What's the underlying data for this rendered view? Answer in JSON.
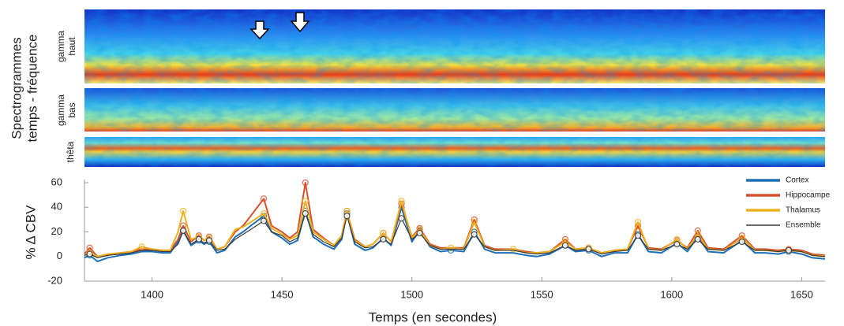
{
  "spectrogram": {
    "title_lines": [
      "Spectrogrammes",
      "temps - fréquence"
    ],
    "bands": [
      [
        "gamma",
        "haut"
      ],
      [
        "gamma",
        "bas"
      ],
      [
        "thêta"
      ]
    ]
  },
  "chart_data": {
    "type": "line",
    "ylabel": "% Δ CBV",
    "xlabel": "Temps (en secondes)",
    "x": [
      1374,
      1376,
      1379,
      1383,
      1388,
      1392,
      1396,
      1400,
      1404,
      1407,
      1410,
      1412,
      1415,
      1418,
      1420,
      1422,
      1425,
      1428,
      1432,
      1435,
      1438,
      1443,
      1446,
      1450,
      1453,
      1456,
      1459,
      1462,
      1466,
      1470,
      1473,
      1475,
      1478,
      1482,
      1485,
      1489,
      1492,
      1496,
      1500,
      1503,
      1507,
      1511,
      1515,
      1520,
      1524,
      1528,
      1532,
      1539,
      1544,
      1548,
      1553,
      1559,
      1563,
      1568,
      1573,
      1578,
      1583,
      1587,
      1591,
      1596,
      1602,
      1606,
      1610,
      1614,
      1620,
      1627,
      1632,
      1636,
      1641,
      1645,
      1650,
      1654,
      1659
    ],
    "series": [
      {
        "name": "Cortex",
        "color": "#1f6fb8",
        "values": [
          -1,
          1,
          -4,
          -1,
          1,
          2,
          4,
          4,
          3,
          3,
          12,
          21,
          9,
          13,
          10,
          12,
          3,
          5,
          16,
          20,
          25,
          33,
          20,
          15,
          10,
          13,
          37,
          16,
          10,
          6,
          14,
          35,
          10,
          5,
          7,
          15,
          9,
          40,
          12,
          21,
          8,
          4,
          5,
          4,
          20,
          6,
          3,
          3,
          1,
          0,
          2,
          9,
          4,
          5,
          0,
          3,
          3,
          18,
          4,
          3,
          11,
          4,
          16,
          4,
          3,
          13,
          3,
          3,
          2,
          4,
          2,
          -1,
          -2
        ]
      },
      {
        "name": "Hippocampe",
        "color": "#d9512c",
        "values": [
          2,
          7,
          0,
          1,
          3,
          4,
          6,
          6,
          5,
          5,
          14,
          25,
          12,
          17,
          13,
          16,
          6,
          8,
          20,
          25,
          33,
          47,
          25,
          20,
          15,
          20,
          60,
          22,
          15,
          9,
          17,
          37,
          14,
          8,
          10,
          19,
          12,
          43,
          16,
          23,
          10,
          7,
          7,
          7,
          30,
          9,
          6,
          6,
          4,
          3,
          4,
          14,
          6,
          7,
          3,
          5,
          6,
          25,
          7,
          6,
          13,
          7,
          21,
          7,
          6,
          17,
          6,
          6,
          5,
          6,
          5,
          2,
          1
        ]
      },
      {
        "name": "Thalamus",
        "color": "#edb120",
        "values": [
          1,
          3,
          0,
          2,
          3,
          4,
          8,
          6,
          5,
          5,
          20,
          37,
          14,
          16,
          13,
          15,
          6,
          8,
          22,
          24,
          28,
          35,
          23,
          18,
          14,
          17,
          45,
          20,
          14,
          9,
          17,
          37,
          13,
          8,
          10,
          19,
          12,
          45,
          15,
          22,
          9,
          6,
          7,
          6,
          28,
          8,
          5,
          6,
          3,
          3,
          4,
          12,
          6,
          7,
          3,
          5,
          6,
          28,
          6,
          5,
          14,
          6,
          18,
          6,
          5,
          15,
          5,
          5,
          4,
          5,
          4,
          1,
          0
        ]
      },
      {
        "name": "Ensemble",
        "color": "#3a3a3a",
        "values": [
          1,
          2,
          -1,
          1,
          2,
          3,
          5,
          5,
          4,
          4,
          10,
          21,
          10,
          14,
          11,
          13,
          5,
          6,
          14,
          18,
          22,
          29,
          20,
          17,
          12,
          15,
          35,
          18,
          12,
          8,
          15,
          33,
          12,
          7,
          8,
          14,
          10,
          31,
          14,
          19,
          9,
          6,
          6,
          6,
          18,
          8,
          5,
          5,
          3,
          2,
          3,
          9,
          5,
          6,
          2,
          4,
          5,
          17,
          6,
          5,
          10,
          6,
          14,
          6,
          5,
          12,
          5,
          5,
          4,
          5,
          4,
          1,
          0
        ]
      }
    ],
    "xlim": [
      1374,
      1659
    ],
    "ylim": [
      -20,
      60
    ],
    "xticks": [
      1400,
      1450,
      1500,
      1550,
      1600,
      1650
    ],
    "yticks": [
      -20,
      0,
      20,
      40,
      60
    ],
    "grid": false,
    "legend": "upper right"
  }
}
